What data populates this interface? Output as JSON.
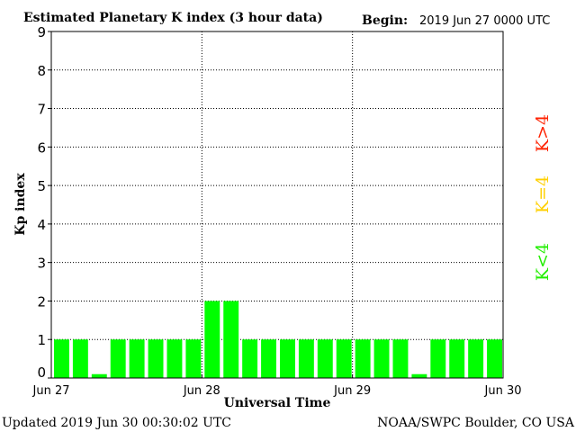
{
  "chart_data": {
    "type": "bar",
    "title": "Estimated Planetary K index (3 hour data)",
    "begin_label": "Begin:",
    "begin_value": "2019 Jun 27 0000 UTC",
    "ylabel": "Kp index",
    "xlabel": "Universal Time",
    "ylim": [
      0,
      9
    ],
    "yticks": [
      "0",
      "1",
      "2",
      "3",
      "4",
      "5",
      "6",
      "7",
      "8",
      "9"
    ],
    "xticks": [
      "Jun 27",
      "Jun 28",
      "Jun 29",
      "Jun 30"
    ],
    "values": [
      1,
      1,
      0.1,
      1,
      1,
      1,
      1,
      1,
      2,
      2,
      1,
      1,
      1,
      1,
      1,
      1,
      1,
      1,
      1,
      0.1,
      1,
      1,
      1,
      1
    ],
    "legend": [
      {
        "text": "K>4",
        "color": "#ff2200"
      },
      {
        "text": "K=4",
        "color": "#ffd000"
      },
      {
        "text": "K<4",
        "color": "#22ee00"
      }
    ],
    "bar_color": "#00ff00",
    "grid": true
  },
  "footer": {
    "updated": "Updated 2019 Jun 30 00:30:02 UTC",
    "source": "NOAA/SWPC Boulder, CO USA"
  }
}
